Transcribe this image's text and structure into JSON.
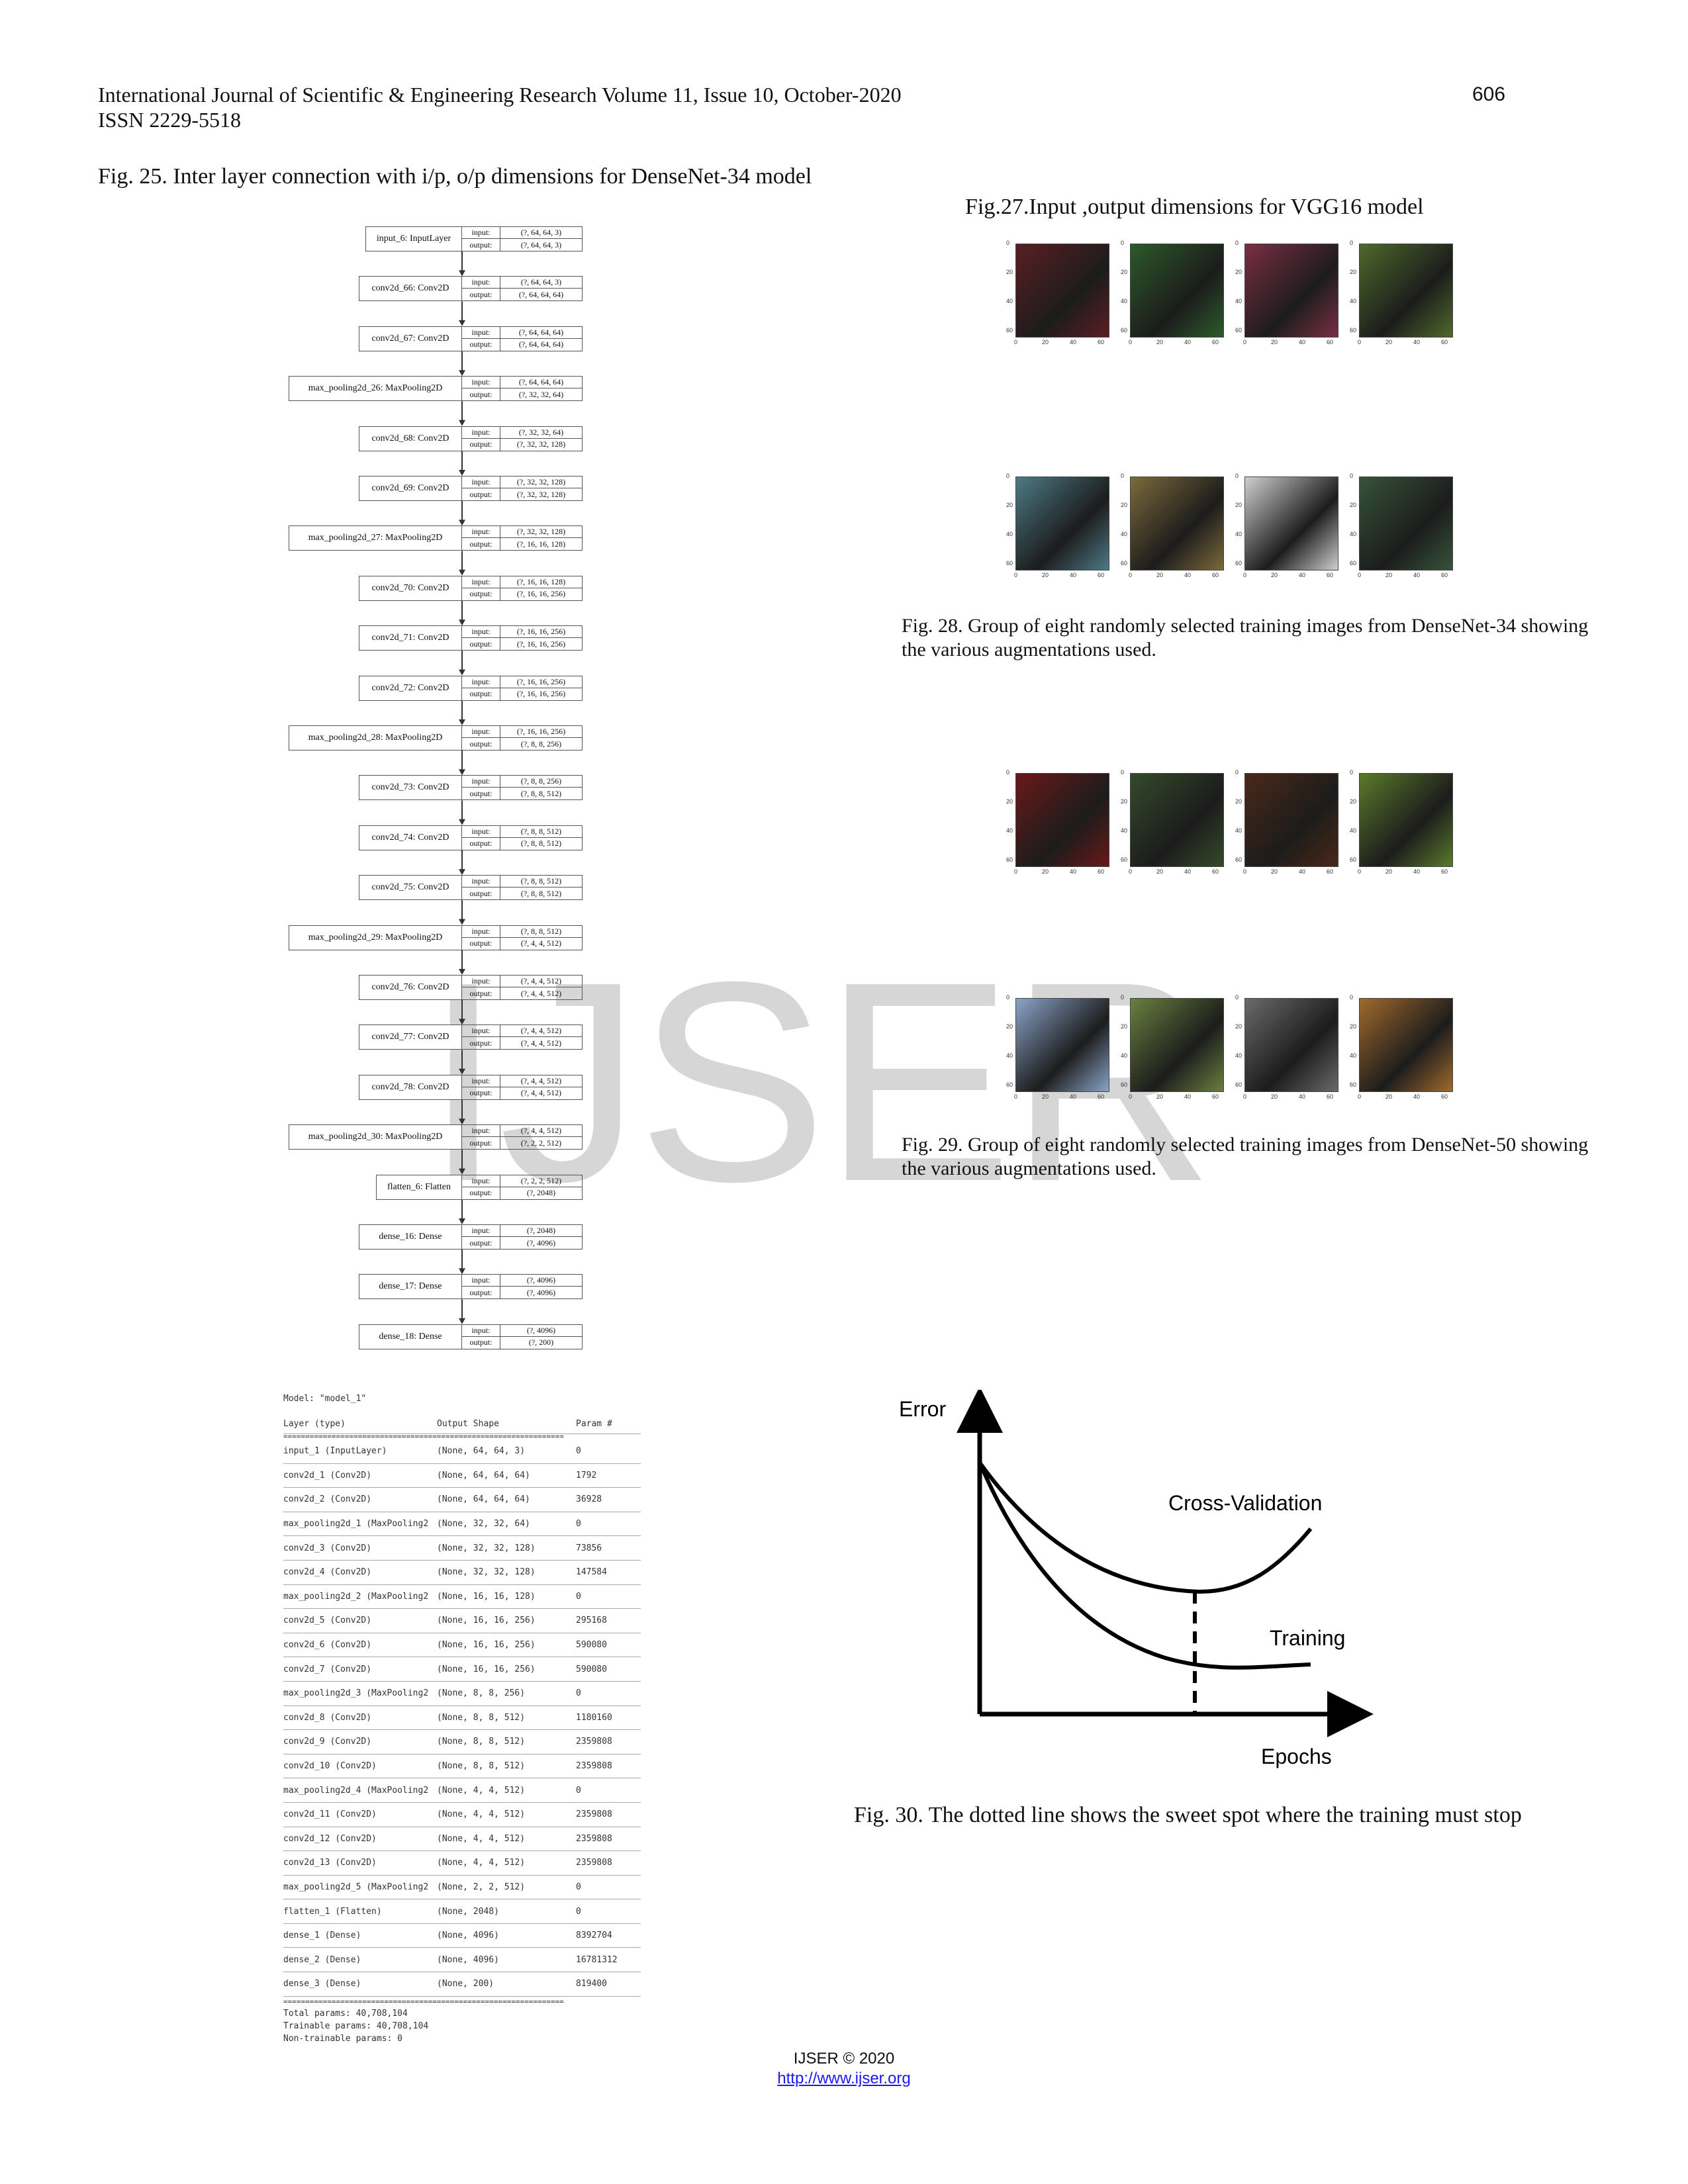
{
  "header": {
    "journal": "International Journal of Scientific & Engineering Research Volume 11, Issue 10, October-2020",
    "issn": "ISSN 2229-5518",
    "page_number": "606"
  },
  "captions": {
    "fig25": "Fig. 25. Inter layer connection with i/p, o/p dimensions for DenseNet-34 model",
    "fig27": "Fig.27.Input ,output dimensions for VGG16 model",
    "fig28": "Fig. 28.  Group of eight randomly selected training images from DenseNet-34 showing the various augmentations used.",
    "fig29": "Fig. 29.  Group of eight randomly selected training images from DenseNet-50 showing the various augmentations used.",
    "fig30": "Fig. 30. The dotted line shows the sweet spot where the training must stop"
  },
  "io_labels": {
    "input": "input:",
    "output": "output:"
  },
  "layers": [
    {
      "name": "input_6: InputLayer",
      "in": "(?, 64, 64, 3)",
      "out": "(?, 64, 64, 3)"
    },
    {
      "name": "conv2d_66: Conv2D",
      "in": "(?, 64, 64, 3)",
      "out": "(?, 64, 64, 64)"
    },
    {
      "name": "conv2d_67: Conv2D",
      "in": "(?, 64, 64, 64)",
      "out": "(?, 64, 64, 64)"
    },
    {
      "name": "max_pooling2d_26: MaxPooling2D",
      "in": "(?, 64, 64, 64)",
      "out": "(?, 32, 32, 64)"
    },
    {
      "name": "conv2d_68: Conv2D",
      "in": "(?, 32, 32, 64)",
      "out": "(?, 32, 32, 128)"
    },
    {
      "name": "conv2d_69: Conv2D",
      "in": "(?, 32, 32, 128)",
      "out": "(?, 32, 32, 128)"
    },
    {
      "name": "max_pooling2d_27: MaxPooling2D",
      "in": "(?, 32, 32, 128)",
      "out": "(?, 16, 16, 128)"
    },
    {
      "name": "conv2d_70: Conv2D",
      "in": "(?, 16, 16, 128)",
      "out": "(?, 16, 16, 256)"
    },
    {
      "name": "conv2d_71: Conv2D",
      "in": "(?, 16, 16, 256)",
      "out": "(?, 16, 16, 256)"
    },
    {
      "name": "conv2d_72: Conv2D",
      "in": "(?, 16, 16, 256)",
      "out": "(?, 16, 16, 256)"
    },
    {
      "name": "max_pooling2d_28: MaxPooling2D",
      "in": "(?, 16, 16, 256)",
      "out": "(?, 8, 8, 256)"
    },
    {
      "name": "conv2d_73: Conv2D",
      "in": "(?, 8, 8, 256)",
      "out": "(?, 8, 8, 512)"
    },
    {
      "name": "conv2d_74: Conv2D",
      "in": "(?, 8, 8, 512)",
      "out": "(?, 8, 8, 512)"
    },
    {
      "name": "conv2d_75: Conv2D",
      "in": "(?, 8, 8, 512)",
      "out": "(?, 8, 8, 512)"
    },
    {
      "name": "max_pooling2d_29: MaxPooling2D",
      "in": "(?, 8, 8, 512)",
      "out": "(?, 4, 4, 512)"
    },
    {
      "name": "conv2d_76: Conv2D",
      "in": "(?, 4, 4, 512)",
      "out": "(?, 4, 4, 512)"
    },
    {
      "name": "conv2d_77: Conv2D",
      "in": "(?, 4, 4, 512)",
      "out": "(?, 4, 4, 512)"
    },
    {
      "name": "conv2d_78: Conv2D",
      "in": "(?, 4, 4, 512)",
      "out": "(?, 4, 4, 512)"
    },
    {
      "name": "max_pooling2d_30: MaxPooling2D",
      "in": "(?, 4, 4, 512)",
      "out": "(?, 2, 2, 512)"
    },
    {
      "name": "flatten_6: Flatten",
      "in": "(?, 2, 2, 512)",
      "out": "(?, 2048)"
    },
    {
      "name": "dense_16: Dense",
      "in": "(?, 2048)",
      "out": "(?, 4096)"
    },
    {
      "name": "dense_17: Dense",
      "in": "(?, 4096)",
      "out": "(?, 4096)"
    },
    {
      "name": "dense_18: Dense",
      "in": "(?, 4096)",
      "out": "(?, 200)"
    }
  ],
  "summary": {
    "model_line": "Model: \"model_1\"",
    "columns": [
      "Layer (type)",
      "Output Shape",
      "Param #"
    ],
    "separator": "================================================================",
    "rows": [
      [
        "input_1 (InputLayer)",
        "(None, 64, 64, 3)",
        "0"
      ],
      [
        "conv2d_1 (Conv2D)",
        "(None, 64, 64, 64)",
        "1792"
      ],
      [
        "conv2d_2 (Conv2D)",
        "(None, 64, 64, 64)",
        "36928"
      ],
      [
        "max_pooling2d_1 (MaxPooling2",
        "(None, 32, 32, 64)",
        "0"
      ],
      [
        "conv2d_3 (Conv2D)",
        "(None, 32, 32, 128)",
        "73856"
      ],
      [
        "conv2d_4 (Conv2D)",
        "(None, 32, 32, 128)",
        "147584"
      ],
      [
        "max_pooling2d_2 (MaxPooling2",
        "(None, 16, 16, 128)",
        "0"
      ],
      [
        "conv2d_5 (Conv2D)",
        "(None, 16, 16, 256)",
        "295168"
      ],
      [
        "conv2d_6 (Conv2D)",
        "(None, 16, 16, 256)",
        "590080"
      ],
      [
        "conv2d_7 (Conv2D)",
        "(None, 16, 16, 256)",
        "590080"
      ],
      [
        "max_pooling2d_3 (MaxPooling2",
        "(None, 8, 8, 256)",
        "0"
      ],
      [
        "conv2d_8 (Conv2D)",
        "(None, 8, 8, 512)",
        "1180160"
      ],
      [
        "conv2d_9 (Conv2D)",
        "(None, 8, 8, 512)",
        "2359808"
      ],
      [
        "conv2d_10 (Conv2D)",
        "(None, 8, 8, 512)",
        "2359808"
      ],
      [
        "max_pooling2d_4 (MaxPooling2",
        "(None, 4, 4, 512)",
        "0"
      ],
      [
        "conv2d_11 (Conv2D)",
        "(None, 4, 4, 512)",
        "2359808"
      ],
      [
        "conv2d_12 (Conv2D)",
        "(None, 4, 4, 512)",
        "2359808"
      ],
      [
        "conv2d_13 (Conv2D)",
        "(None, 4, 4, 512)",
        "2359808"
      ],
      [
        "max_pooling2d_5 (MaxPooling2",
        "(None, 2, 2, 512)",
        "0"
      ],
      [
        "flatten_1 (Flatten)",
        "(None, 2048)",
        "0"
      ],
      [
        "dense_1 (Dense)",
        "(None, 4096)",
        "8392704"
      ],
      [
        "dense_2 (Dense)",
        "(None, 4096)",
        "16781312"
      ],
      [
        "dense_3 (Dense)",
        "(None, 200)",
        "819400"
      ]
    ],
    "total": "Total params: 40,708,104",
    "trainable": "Trainable params: 40,708,104",
    "non_trainable": "Non-trainable params: 0"
  },
  "thumbs": {
    "yticks": [
      "0",
      "20",
      "40",
      "60"
    ],
    "xticks": [
      "0",
      "20",
      "40",
      "60"
    ],
    "colors_row1": [
      "#5a1e22",
      "#2c5a2a",
      "#7a2e44",
      "#4e6a2c"
    ],
    "colors_row2": [
      "#4e7a86",
      "#7c6a3c",
      "#cfcfcf",
      "#36543a"
    ],
    "colors_row3": [
      "#6a1818",
      "#344a2a",
      "#4a2818",
      "#5a7a2c"
    ],
    "colors_row4": [
      "#8aa4c8",
      "#6a8040",
      "#6a6a6a",
      "#a06a2c"
    ]
  },
  "fig30_chart": {
    "ylabel": "Error",
    "xlabel": "Epochs",
    "label_cv": "Cross-Validation",
    "label_train": "Training"
  },
  "watermark": "IJSER",
  "footer": {
    "copyright": "IJSER © 2020",
    "url": "http://www.ijser.org"
  }
}
